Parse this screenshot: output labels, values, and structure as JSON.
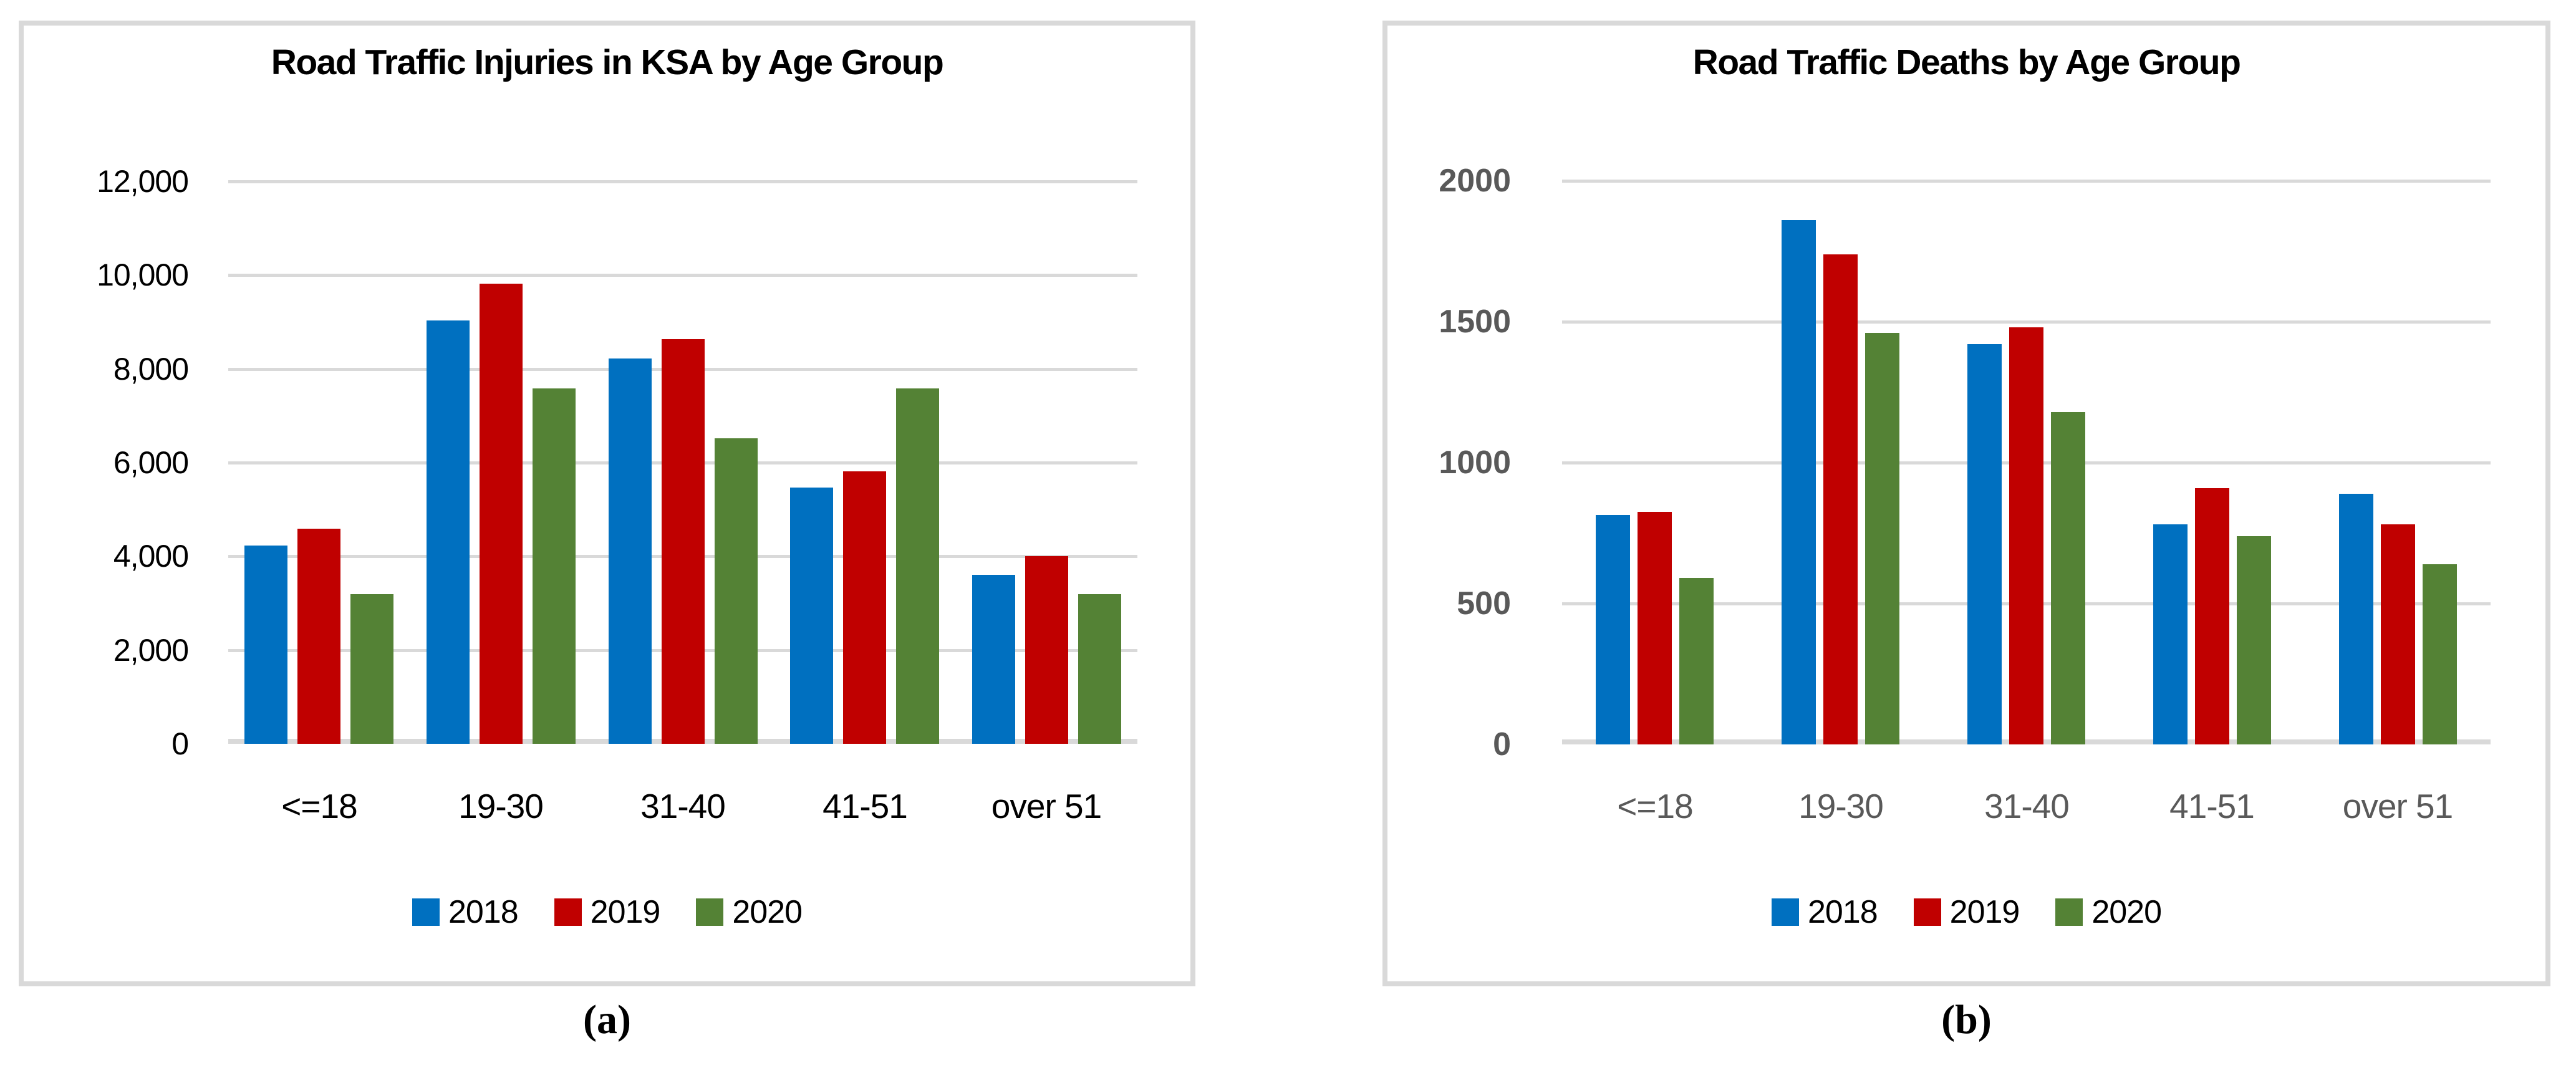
{
  "captions": [
    "(a)",
    "(b)"
  ],
  "colors": {
    "series_2018": "#0070C0",
    "series_2019": "#C00000",
    "series_2020": "#548235",
    "gridline": "#D9D9D9",
    "panel_border": "#D9D9D9",
    "axis_text_chart_a": "#000000",
    "axis_text_chart_b": "#595959",
    "legend_text": "#000000",
    "title_text": "#000000",
    "caption_text": "#000000",
    "background": "#FFFFFF"
  },
  "legend_labels": [
    "2018",
    "2019",
    "2020"
  ],
  "chart_data": [
    {
      "type": "bar",
      "title": "Road Traffic Injuries in KSA by Age Group",
      "categories": [
        "<=18",
        "19-30",
        "31-40",
        "41-51",
        "over 51"
      ],
      "series": [
        {
          "name": "2018",
          "color": "#0070C0",
          "values": [
            4230,
            9030,
            8220,
            5470,
            3610
          ]
        },
        {
          "name": "2019",
          "color": "#C00000",
          "values": [
            4590,
            9820,
            8640,
            5820,
            4000
          ]
        },
        {
          "name": "2020",
          "color": "#548235",
          "values": [
            3190,
            7580,
            6520,
            7580,
            3190
          ]
        }
      ],
      "xlabel": "",
      "ylabel": "",
      "ylim": [
        0,
        12000
      ],
      "ytick_values": [
        12000,
        10000,
        8000,
        6000,
        4000,
        2000,
        0
      ],
      "ytick_labels": [
        "12,000",
        "10,000",
        "8,000",
        "6,000",
        "4,000",
        "2,000",
        "0"
      ],
      "grid": true,
      "legend_position": "bottom",
      "tick_color": "#000000",
      "tick_bold": false
    },
    {
      "type": "bar",
      "title": "Road Traffic Deaths by Age Group",
      "categories": [
        "<=18",
        "19-30",
        "31-40",
        "41-51",
        "over 51"
      ],
      "series": [
        {
          "name": "2018",
          "color": "#0070C0",
          "values": [
            815,
            1860,
            1420,
            780,
            890
          ]
        },
        {
          "name": "2019",
          "color": "#C00000",
          "values": [
            825,
            1740,
            1480,
            910,
            780
          ]
        },
        {
          "name": "2020",
          "color": "#548235",
          "values": [
            590,
            1460,
            1180,
            740,
            640
          ]
        }
      ],
      "xlabel": "",
      "ylabel": "",
      "ylim": [
        0,
        2000
      ],
      "ytick_values": [
        2000,
        1500,
        1000,
        500,
        0
      ],
      "ytick_labels": [
        "2000",
        "1500",
        "1000",
        "500",
        "0"
      ],
      "grid": true,
      "legend_position": "bottom",
      "tick_color": "#595959",
      "tick_bold": true
    }
  ]
}
